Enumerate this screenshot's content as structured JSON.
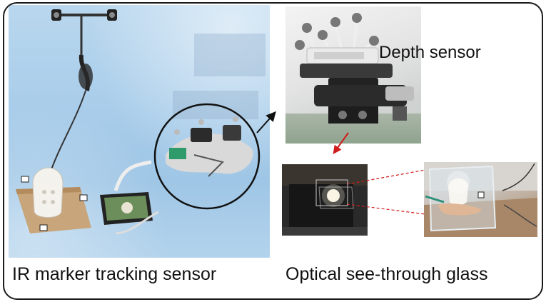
{
  "labels": {
    "depth_sensor": "Depth sensor",
    "ir_marker_tracking_sensor": "IR marker tracking sensor",
    "optical_see_through_glass": "Optical see-through glass"
  },
  "colors": {
    "frame_border": "#1a1a1a",
    "left_photo_tint": "#a9cdea",
    "pointer_arrow": "#d01c1c",
    "dashed_lines": "#d01c1c",
    "circle_outline": "#111111"
  },
  "icons": {
    "arrow_to_depth": "black-arrow-icon",
    "arrow_to_glass": "red-arrow-icon"
  }
}
